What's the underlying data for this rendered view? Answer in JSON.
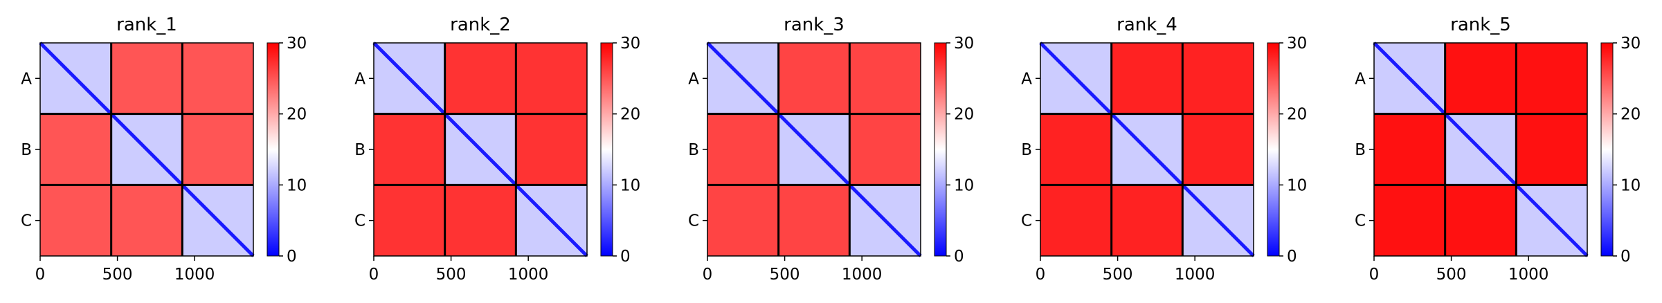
{
  "chart_data": [
    {
      "type": "heatmap",
      "title": "rank_1",
      "chains": [
        "A",
        "B",
        "C"
      ],
      "chain_boundaries": [
        460,
        920
      ],
      "x_range": [
        0,
        1380
      ],
      "x_ticks": [
        0,
        500,
        1000
      ],
      "colorbar": {
        "min": 0,
        "max": 30,
        "ticks": [
          0,
          10,
          20,
          30
        ],
        "colormap": "bwr"
      },
      "inter_chain_level": 25,
      "intra_chain_level": 12
    },
    {
      "type": "heatmap",
      "title": "rank_2",
      "chains": [
        "A",
        "B",
        "C"
      ],
      "chain_boundaries": [
        460,
        920
      ],
      "x_range": [
        0,
        1380
      ],
      "x_ticks": [
        0,
        500,
        1000
      ],
      "colorbar": {
        "min": 0,
        "max": 30,
        "ticks": [
          0,
          10,
          20,
          30
        ],
        "colormap": "bwr"
      },
      "inter_chain_level": 27,
      "intra_chain_level": 12
    },
    {
      "type": "heatmap",
      "title": "rank_3",
      "chains": [
        "A",
        "B",
        "C"
      ],
      "chain_boundaries": [
        460,
        920
      ],
      "x_range": [
        0,
        1380
      ],
      "x_ticks": [
        0,
        500,
        1000
      ],
      "colorbar": {
        "min": 0,
        "max": 30,
        "ticks": [
          0,
          10,
          20,
          30
        ],
        "colormap": "bwr"
      },
      "inter_chain_level": 26,
      "intra_chain_level": 12
    },
    {
      "type": "heatmap",
      "title": "rank_4",
      "chains": [
        "A",
        "B",
        "C"
      ],
      "chain_boundaries": [
        460,
        920
      ],
      "x_range": [
        0,
        1380
      ],
      "x_ticks": [
        0,
        500,
        1000
      ],
      "colorbar": {
        "min": 0,
        "max": 30,
        "ticks": [
          0,
          10,
          20,
          30
        ],
        "colormap": "bwr"
      },
      "inter_chain_level": 28,
      "intra_chain_level": 12
    },
    {
      "type": "heatmap",
      "title": "rank_5",
      "chains": [
        "A",
        "B",
        "C"
      ],
      "chain_boundaries": [
        460,
        920
      ],
      "x_range": [
        0,
        1380
      ],
      "x_ticks": [
        0,
        500,
        1000
      ],
      "colorbar": {
        "min": 0,
        "max": 30,
        "ticks": [
          0,
          10,
          20,
          30
        ],
        "colormap": "bwr"
      },
      "inter_chain_level": 29,
      "intra_chain_level": 12
    }
  ]
}
